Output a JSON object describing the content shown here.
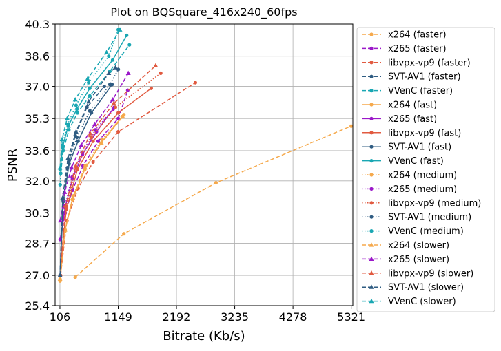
{
  "chart_data": {
    "type": "line",
    "title": "Plot on BQSquare_416x240_60fps",
    "xlabel": "Bitrate (Kb/s)",
    "ylabel": "PSNR",
    "xlim": [
      20,
      5350
    ],
    "ylim": [
      25.4,
      40.3
    ],
    "xticks": [
      106,
      1149,
      2192,
      3235,
      4278,
      5321
    ],
    "yticks": [
      25.4,
      27.0,
      28.7,
      30.3,
      32.0,
      33.6,
      35.3,
      37.0,
      38.6,
      40.3
    ],
    "xtick_labels": [
      "106",
      "1149",
      "2192",
      "3235",
      "4278",
      "5321"
    ],
    "ytick_labels": [
      "25.4",
      "27.0",
      "28.7",
      "30.3",
      "32.0",
      "33.6",
      "35.3",
      "37.0",
      "38.6",
      "40.3"
    ],
    "grid": true,
    "legend_position": "right, outside",
    "colors": {
      "x264": "#f5a94c",
      "x265": "#9b18c9",
      "libvpx-vp9": "#e15a40",
      "SVT-AV1": "#2f5c82",
      "VVenC": "#19a7b3"
    },
    "series": [
      {
        "name": "x264 (faster)",
        "codec": "x264",
        "dash": "dashed",
        "marker": "circle",
        "x": [
          380,
          1250,
          2900,
          5321
        ],
        "y": [
          26.9,
          29.2,
          31.9,
          34.9
        ]
      },
      {
        "name": "x265 (faster)",
        "codec": "x265",
        "dash": "dashed",
        "marker": "circle",
        "x": [
          112,
          200,
          330,
          520,
          790,
          1150,
          1320
        ],
        "y": [
          28.9,
          30.3,
          31.5,
          32.8,
          34.1,
          35.3,
          36.8
        ]
      },
      {
        "name": "libvpx-vp9 (faster)",
        "codec": "libvpx-vp9",
        "dash": "dashed",
        "marker": "circle",
        "x": [
          118,
          230,
          430,
          700,
          1150,
          2530
        ],
        "y": [
          27.0,
          29.9,
          31.6,
          33.0,
          34.6,
          37.2
        ]
      },
      {
        "name": "SVT-AV1 (faster)",
        "codec": "SVT-AV1",
        "dash": "dashed",
        "marker": "circle",
        "x": [
          108,
          155,
          240,
          380,
          590,
          900
        ],
        "y": [
          27.0,
          30.3,
          32.7,
          34.4,
          35.9,
          37.0
        ]
      },
      {
        "name": "VVenC (faster)",
        "codec": "VVenC",
        "dash": "dashed",
        "marker": "circle",
        "x": [
          120,
          165,
          265,
          420,
          640,
          1000,
          1350
        ],
        "y": [
          32.4,
          33.6,
          34.7,
          35.6,
          36.5,
          37.8,
          39.2
        ]
      },
      {
        "name": "x264 (fast)",
        "codec": "x264",
        "dash": "solid",
        "marker": "circle",
        "x": [
          108,
          190,
          330,
          550,
          840,
          1220
        ],
        "y": [
          26.7,
          29.3,
          31.0,
          32.6,
          34.0,
          35.4
        ]
      },
      {
        "name": "x265 (fast)",
        "codec": "x265",
        "dash": "solid",
        "marker": "circle",
        "x": [
          112,
          200,
          330,
          510,
          760,
          1080
        ],
        "y": [
          28.9,
          30.6,
          32.1,
          33.4,
          34.6,
          35.9
        ]
      },
      {
        "name": "libvpx-vp9 (fast)",
        "codec": "libvpx-vp9",
        "dash": "solid",
        "marker": "circle",
        "x": [
          108,
          220,
          420,
          700,
          1150,
          1740
        ],
        "y": [
          27.0,
          30.5,
          32.6,
          34.1,
          35.6,
          36.9
        ]
      },
      {
        "name": "SVT-AV1 (fast)",
        "codec": "SVT-AV1",
        "dash": "solid",
        "marker": "circle",
        "x": [
          108,
          165,
          270,
          430,
          670,
          1040
        ],
        "y": [
          27.0,
          30.9,
          32.9,
          34.1,
          35.6,
          37.1
        ]
      },
      {
        "name": "VVenC (fast)",
        "codec": "VVenC",
        "dash": "solid",
        "marker": "circle",
        "x": [
          110,
          155,
          255,
          410,
          640,
          1050,
          1300
        ],
        "y": [
          32.6,
          33.8,
          34.9,
          35.8,
          36.9,
          38.4,
          39.7
        ]
      },
      {
        "name": "x264 (medium)",
        "codec": "x264",
        "dash": "dotted",
        "marker": "circle",
        "x": [
          108,
          200,
          340,
          560,
          860,
          1250
        ],
        "y": [
          26.8,
          29.4,
          31.2,
          32.8,
          34.2,
          35.5
        ]
      },
      {
        "name": "x265 (medium)",
        "codec": "x265",
        "dash": "dotted",
        "marker": "circle",
        "x": [
          112,
          195,
          325,
          500,
          740,
          1060
        ],
        "y": [
          28.9,
          30.7,
          32.2,
          33.5,
          34.7,
          35.8
        ]
      },
      {
        "name": "libvpx-vp9 (medium)",
        "codec": "libvpx-vp9",
        "dash": "dotted",
        "marker": "circle",
        "x": [
          108,
          215,
          400,
          670,
          1100,
          1910
        ],
        "y": [
          27.0,
          30.6,
          32.7,
          34.3,
          35.9,
          37.7
        ]
      },
      {
        "name": "SVT-AV1 (medium)",
        "codec": "SVT-AV1",
        "dash": "dotted",
        "marker": "circle",
        "x": [
          108,
          160,
          260,
          410,
          640,
          1000,
          1150
        ],
        "y": [
          27.0,
          31.0,
          33.0,
          34.3,
          35.7,
          37.1,
          37.9
        ]
      },
      {
        "name": "VVenC (medium)",
        "codec": "VVenC",
        "dash": "dotted",
        "marker": "circle",
        "x": [
          110,
          150,
          245,
          395,
          620,
          980,
          1150
        ],
        "y": [
          31.8,
          33.9,
          35.0,
          36.0,
          37.2,
          38.6,
          40.0
        ]
      },
      {
        "name": "x264 (slower)",
        "codec": "x264",
        "dash": "dashed",
        "marker": "triangle",
        "x": [
          108,
          195,
          335,
          555,
          850,
          1230
        ],
        "y": [
          26.8,
          29.4,
          31.1,
          32.7,
          34.0,
          35.4
        ]
      },
      {
        "name": "x265 (slower)",
        "codec": "x265",
        "dash": "dashed",
        "marker": "triangle",
        "x": [
          112,
          190,
          315,
          490,
          730,
          1050,
          1330
        ],
        "y": [
          29.9,
          31.4,
          32.7,
          33.9,
          35.0,
          36.3,
          37.7
        ]
      },
      {
        "name": "libvpx-vp9 (slower)",
        "codec": "libvpx-vp9",
        "dash": "dashed",
        "marker": "triangle",
        "x": [
          108,
          210,
          390,
          650,
          1070,
          1820
        ],
        "y": [
          27.0,
          30.7,
          32.8,
          34.5,
          36.1,
          38.1
        ]
      },
      {
        "name": "SVT-AV1 (slower)",
        "codec": "SVT-AV1",
        "dash": "dashed",
        "marker": "triangle",
        "x": [
          108,
          155,
          250,
          395,
          620,
          980,
          1100
        ],
        "y": [
          27.0,
          31.1,
          33.2,
          34.6,
          36.2,
          37.7,
          38.0
        ]
      },
      {
        "name": "VVenC (slower)",
        "codec": "VVenC",
        "dash": "dashed",
        "marker": "triangle",
        "x": [
          108,
          145,
          235,
          380,
          600,
          940,
          1180
        ],
        "y": [
          32.7,
          34.2,
          35.3,
          36.3,
          37.4,
          38.8,
          40.0
        ]
      }
    ]
  }
}
